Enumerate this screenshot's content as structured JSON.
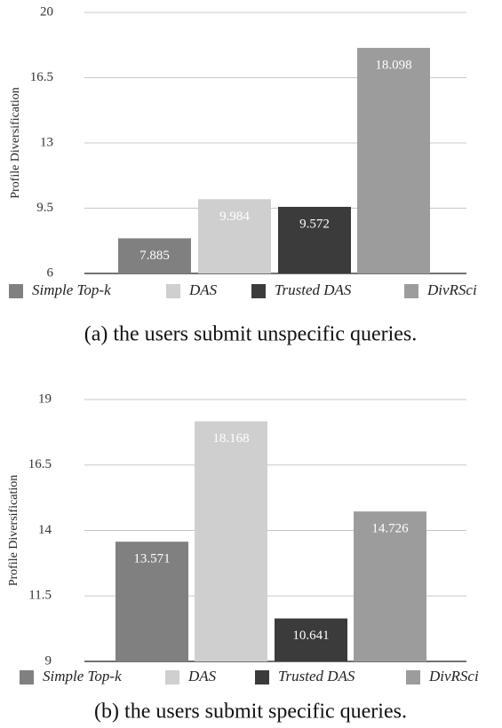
{
  "chart_data": [
    {
      "type": "bar",
      "y_label": "Profile Diversification",
      "categories": [
        "Simple Top-k",
        "DAS",
        "Trusted DAS",
        "DivRSci"
      ],
      "values": [
        7.885,
        9.984,
        9.572,
        18.098
      ],
      "colors": [
        "#808080",
        "#cfcfcf",
        "#3b3b3b",
        "#9c9c9c"
      ],
      "ylim": [
        6,
        20
      ],
      "yticks": [
        6,
        9.5,
        13,
        16.5,
        20
      ],
      "grid": true,
      "caption": "(a) the users submit unspecific queries."
    },
    {
      "type": "bar",
      "y_label": "Profile Diversification",
      "categories": [
        "Simple Top-k",
        "DAS",
        "Trusted DAS",
        "DivRSci"
      ],
      "values": [
        13.571,
        18.168,
        10.641,
        14.726
      ],
      "colors": [
        "#808080",
        "#cfcfcf",
        "#3b3b3b",
        "#9c9c9c"
      ],
      "ylim": [
        9,
        19
      ],
      "yticks": [
        9,
        11.5,
        14,
        16.5,
        19
      ],
      "grid": true,
      "caption": "(b) the users submit specific queries."
    }
  ]
}
